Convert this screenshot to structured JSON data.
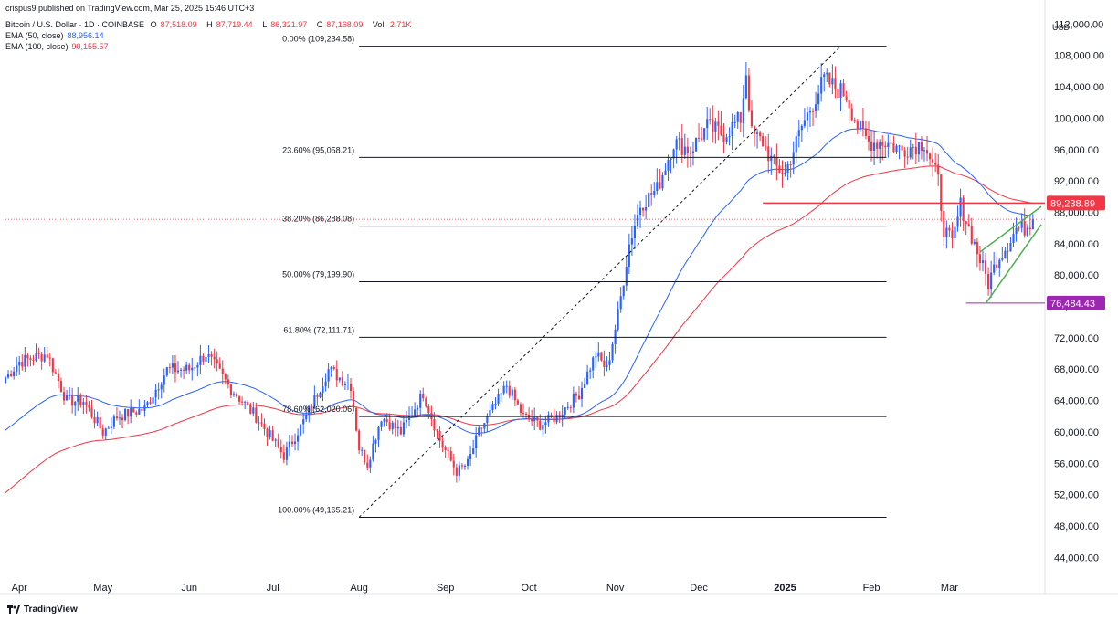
{
  "header": {
    "published": "crispus9 published on TradingView.com, Mar 25, 2025 15:46 UTC+3",
    "symbol": "Bitcoin / U.S. Dollar · 1D · COINBASE",
    "o_label": "O",
    "o_value": "87,518.09",
    "h_label": "H",
    "h_value": "87,719.44",
    "l_label": "L",
    "l_value": "86,321.97",
    "c_label": "C",
    "c_value": "87,168.09",
    "vol_label": "Vol",
    "vol_value": "2.71K",
    "ema50_label": "EMA (50, close)",
    "ema50_value": "88,956.14",
    "ema100_label": "EMA (100, close)",
    "ema100_value": "90,155.57"
  },
  "branding": {
    "name": "TradingView"
  },
  "axis": {
    "currency": "USD"
  },
  "colors": {
    "up": "#2962ff",
    "down": "#f23645",
    "ema50": "#2962ff",
    "ema100": "#f23645",
    "channel": "#4caf50",
    "support": "#9c27b0"
  },
  "chart_data": {
    "type": "candlestick",
    "title": "Bitcoin / U.S. Dollar · 1D · COINBASE",
    "ylim": [
      42000,
      113500
    ],
    "y_ticks": [
      44000,
      48000,
      52000,
      56000,
      60000,
      64000,
      68000,
      72000,
      76000,
      80000,
      84000,
      88000,
      92000,
      96000,
      100000,
      104000,
      108000,
      112000
    ],
    "y_tick_labels": [
      "44,000.00",
      "48,000.00",
      "52,000.00",
      "56,000.00",
      "60,000.00",
      "64,000.00",
      "68,000.00",
      "72,000.00",
      "76,000.00",
      "80,000.00",
      "84,000.00",
      "88,000.00",
      "92,000.00",
      "96,000.00",
      "100,000.00",
      "104,000.00",
      "108,000.00",
      "112,000.00"
    ],
    "x_months": [
      {
        "label": "Apr",
        "day": 5
      },
      {
        "label": "May",
        "day": 35
      },
      {
        "label": "Jun",
        "day": 66
      },
      {
        "label": "Jul",
        "day": 96
      },
      {
        "label": "Aug",
        "day": 127
      },
      {
        "label": "Sep",
        "day": 158
      },
      {
        "label": "Oct",
        "day": 188
      },
      {
        "label": "Nov",
        "day": 219
      },
      {
        "label": "Dec",
        "day": 249
      },
      {
        "label": "2025",
        "day": 280
      },
      {
        "label": "Feb",
        "day": 311
      },
      {
        "label": "Mar",
        "day": 339
      }
    ],
    "close_anchors": [
      [
        0,
        67000
      ],
      [
        5,
        69000
      ],
      [
        15,
        70000
      ],
      [
        22,
        64000
      ],
      [
        28,
        64000
      ],
      [
        35,
        60000
      ],
      [
        40,
        62000
      ],
      [
        50,
        63000
      ],
      [
        58,
        68000
      ],
      [
        66,
        68000
      ],
      [
        72,
        70000
      ],
      [
        80,
        66000
      ],
      [
        90,
        62000
      ],
      [
        100,
        57000
      ],
      [
        108,
        62000
      ],
      [
        116,
        68000
      ],
      [
        124,
        66000
      ],
      [
        127,
        58000
      ],
      [
        130,
        56000
      ],
      [
        135,
        62000
      ],
      [
        142,
        60000
      ],
      [
        150,
        65000
      ],
      [
        156,
        59000
      ],
      [
        162,
        55000
      ],
      [
        166,
        56000
      ],
      [
        170,
        60000
      ],
      [
        180,
        66000
      ],
      [
        186,
        62000
      ],
      [
        192,
        61000
      ],
      [
        198,
        62000
      ],
      [
        206,
        65000
      ],
      [
        212,
        70000
      ],
      [
        216,
        68000
      ],
      [
        220,
        75000
      ],
      [
        224,
        84000
      ],
      [
        228,
        89000
      ],
      [
        234,
        91000
      ],
      [
        240,
        97000
      ],
      [
        246,
        96000
      ],
      [
        252,
        99000
      ],
      [
        258,
        98000
      ],
      [
        264,
        100000
      ],
      [
        266,
        106000
      ],
      [
        268,
        98000
      ],
      [
        272,
        97000
      ],
      [
        276,
        94000
      ],
      [
        280,
        93000
      ],
      [
        286,
        99000
      ],
      [
        290,
        102000
      ],
      [
        294,
        105000
      ],
      [
        298,
        104000
      ],
      [
        302,
        103000
      ],
      [
        306,
        99000
      ],
      [
        310,
        97000
      ],
      [
        316,
        97000
      ],
      [
        322,
        96000
      ],
      [
        330,
        97000
      ],
      [
        335,
        92000
      ],
      [
        337,
        86000
      ],
      [
        340,
        84000
      ],
      [
        343,
        89000
      ],
      [
        346,
        86000
      ],
      [
        350,
        82000
      ],
      [
        353,
        79000
      ],
      [
        356,
        82000
      ],
      [
        360,
        84000
      ],
      [
        363,
        86000
      ],
      [
        366,
        86000
      ],
      [
        369,
        87168
      ]
    ],
    "ema50_value_last": 88956.14,
    "ema100_value_last": 90155.57,
    "last_price": 87168.09,
    "fibonacci": {
      "high": 109234.58,
      "low": 49165.21,
      "levels": [
        {
          "ratio": "0.00%",
          "price": 109234.58,
          "label": "0.00% (109,234.58)"
        },
        {
          "ratio": "23.60%",
          "price": 95058.21,
          "label": "23.60% (95,058.21)"
        },
        {
          "ratio": "38.20%",
          "price": 86288.08,
          "label": "38.20% (86,288.08)"
        },
        {
          "ratio": "50.00%",
          "price": 79199.9,
          "label": "50.00% (79,199.90)"
        },
        {
          "ratio": "61.80%",
          "price": 72111.71,
          "label": "61.80% (72,111.71)"
        },
        {
          "ratio": "78.60%",
          "price": 62020.06,
          "label": "78.60% (62,020.06)"
        },
        {
          "ratio": "100.00%",
          "price": 49165.21,
          "label": "100.00% (49,165.21)"
        }
      ],
      "start_day": 127,
      "end_day": 300
    },
    "resistance": {
      "price": 89238.89,
      "label": "89,238.89",
      "start_day": 272
    },
    "support": {
      "price": 76484.43,
      "label": "76,484.43",
      "start_day": 345
    },
    "channel": {
      "upper": [
        [
          350,
          83000
        ],
        [
          372,
          88800
        ]
      ],
      "lower": [
        [
          352,
          76400
        ],
        [
          372,
          86500
        ]
      ]
    }
  }
}
